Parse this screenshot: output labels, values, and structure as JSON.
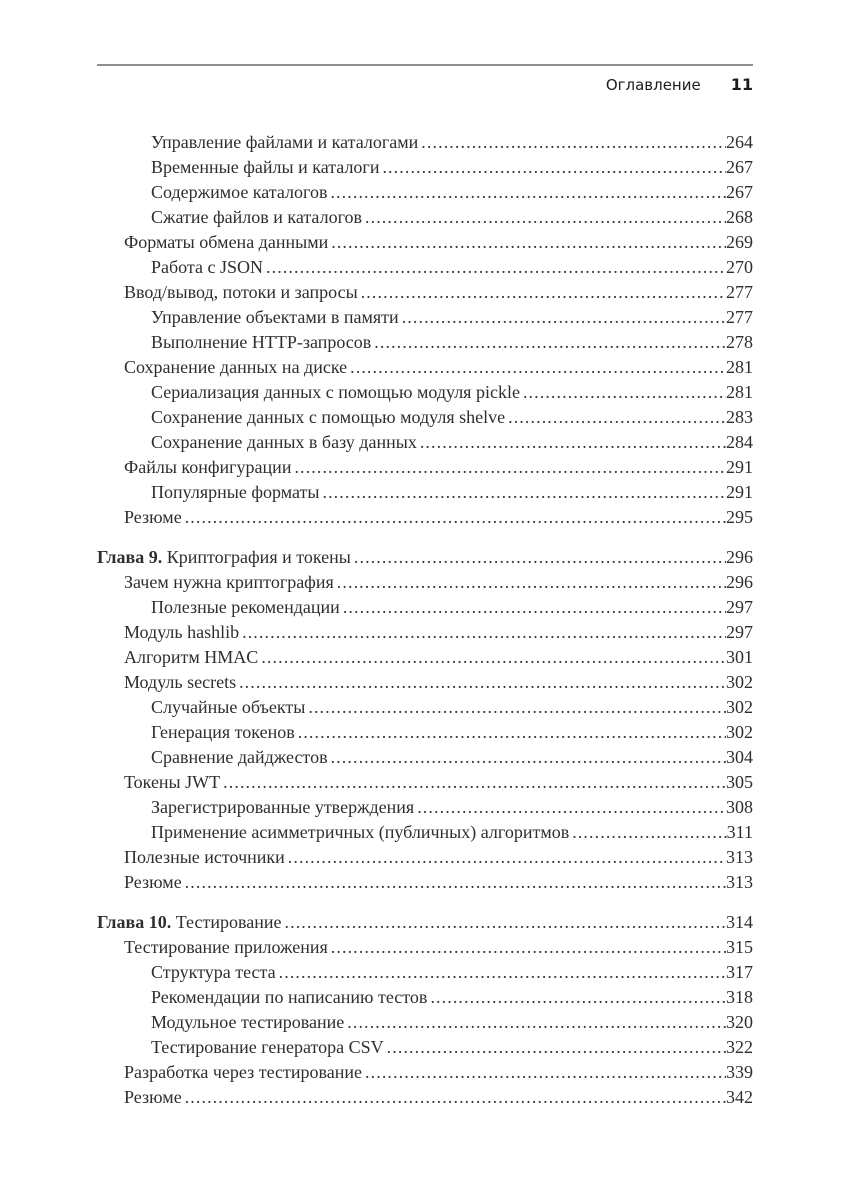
{
  "header": {
    "title": "Оглавление",
    "page_number": "11"
  },
  "toc": {
    "sections": [
      {
        "entries": [
          {
            "level": 2,
            "label": "Управление файлами и каталогами",
            "page": "264"
          },
          {
            "level": 2,
            "label": "Временные файлы и каталоги",
            "page": "267"
          },
          {
            "level": 2,
            "label": "Содержимое каталогов",
            "page": "267"
          },
          {
            "level": 2,
            "label": "Сжатие файлов и каталогов",
            "page": "268"
          },
          {
            "level": 1,
            "label": "Форматы обмена данными",
            "page": "269"
          },
          {
            "level": 2,
            "label": "Работа с JSON",
            "page": "270"
          },
          {
            "level": 1,
            "label": "Ввод/вывод, потоки и запросы",
            "page": "277"
          },
          {
            "level": 2,
            "label": "Управление объектами в памяти",
            "page": "277"
          },
          {
            "level": 2,
            "label": "Выполнение HTTP-запросов",
            "page": "278"
          },
          {
            "level": 1,
            "label": "Сохранение данных на диске",
            "page": "281"
          },
          {
            "level": 2,
            "label": "Сериализация данных с помощью модуля pickle",
            "page": "281"
          },
          {
            "level": 2,
            "label": "Сохранение данных с помощью модуля shelve",
            "page": "283"
          },
          {
            "level": 2,
            "label": "Сохранение данных в базу данных",
            "page": "284"
          },
          {
            "level": 1,
            "label": "Файлы конфигурации",
            "page": "291"
          },
          {
            "level": 2,
            "label": "Популярные форматы",
            "page": "291"
          },
          {
            "level": 1,
            "label": "Резюме",
            "page": "295"
          }
        ]
      },
      {
        "entries": [
          {
            "level": 0,
            "prefix": "Глава 9.",
            "label": "Криптография и токены",
            "page": "296"
          },
          {
            "level": 1,
            "label": "Зачем нужна криптография",
            "page": "296"
          },
          {
            "level": 2,
            "label": "Полезные рекомендации",
            "page": "297"
          },
          {
            "level": 1,
            "label": "Модуль hashlib",
            "page": "297"
          },
          {
            "level": 1,
            "label": "Алгоритм HMAC",
            "page": "301"
          },
          {
            "level": 1,
            "label": "Модуль secrets",
            "page": "302"
          },
          {
            "level": 2,
            "label": "Случайные объекты",
            "page": "302"
          },
          {
            "level": 2,
            "label": "Генерация токенов",
            "page": "302"
          },
          {
            "level": 2,
            "label": "Сравнение дайджестов",
            "page": "304"
          },
          {
            "level": 1,
            "label": "Токены JWT",
            "page": "305"
          },
          {
            "level": 2,
            "label": "Зарегистрированные утверждения",
            "page": "308"
          },
          {
            "level": 2,
            "label": "Применение асимметричных (публичных) алгоритмов",
            "page": "311"
          },
          {
            "level": 1,
            "label": "Полезные источники",
            "page": "313"
          },
          {
            "level": 1,
            "label": "Резюме",
            "page": "313"
          }
        ]
      },
      {
        "entries": [
          {
            "level": 0,
            "prefix": "Глава 10.",
            "label": "Тестирование",
            "page": "314"
          },
          {
            "level": 1,
            "label": "Тестирование приложения",
            "page": "315"
          },
          {
            "level": 2,
            "label": "Структура теста",
            "page": "317"
          },
          {
            "level": 2,
            "label": "Рекомендации по написанию тестов",
            "page": "318"
          },
          {
            "level": 2,
            "label": "Модульное тестирование",
            "page": "320"
          },
          {
            "level": 2,
            "label": "Тестирование генератора CSV",
            "page": "322"
          },
          {
            "level": 1,
            "label": "Разработка через тестирование",
            "page": "339"
          },
          {
            "level": 1,
            "label": "Резюме",
            "page": "342"
          }
        ]
      }
    ]
  }
}
